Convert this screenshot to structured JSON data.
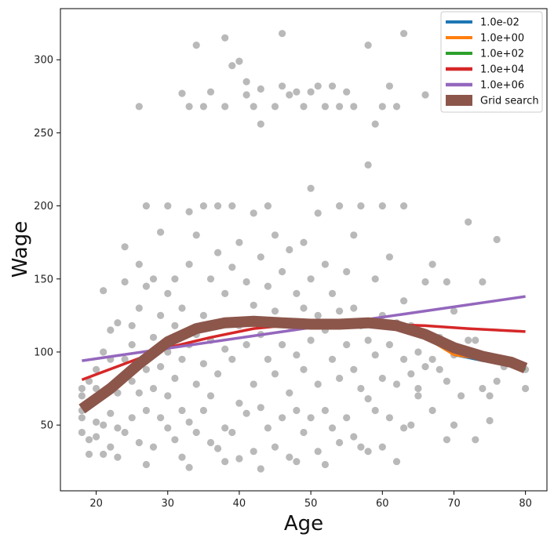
{
  "chart_data": {
    "type": "scatter",
    "xlabel": "Age",
    "ylabel": "Wage",
    "xlim": [
      15,
      83
    ],
    "ylim": [
      5,
      335
    ],
    "xticks": [
      20,
      30,
      40,
      50,
      60,
      70,
      80
    ],
    "yticks": [
      50,
      100,
      150,
      200,
      250,
      300
    ],
    "grid": false,
    "legend_position": "top-right",
    "scatter_color": "#808080",
    "scatter_points": [
      [
        18,
        60
      ],
      [
        18,
        75
      ],
      [
        18,
        70
      ],
      [
        18,
        55
      ],
      [
        18,
        45
      ],
      [
        19,
        40
      ],
      [
        19,
        30
      ],
      [
        19,
        65
      ],
      [
        19,
        80
      ],
      [
        20,
        52
      ],
      [
        20,
        42
      ],
      [
        20,
        75
      ],
      [
        20,
        88
      ],
      [
        21,
        30
      ],
      [
        21,
        50
      ],
      [
        21,
        100
      ],
      [
        21,
        142
      ],
      [
        22,
        35
      ],
      [
        22,
        58
      ],
      [
        22,
        95
      ],
      [
        22,
        115
      ],
      [
        23,
        28
      ],
      [
        23,
        48
      ],
      [
        23,
        72
      ],
      [
        23,
        120
      ],
      [
        24,
        45
      ],
      [
        24,
        95
      ],
      [
        24,
        148
      ],
      [
        24,
        172
      ],
      [
        25,
        55
      ],
      [
        25,
        80
      ],
      [
        25,
        105
      ],
      [
        25,
        118
      ],
      [
        26,
        38
      ],
      [
        26,
        72
      ],
      [
        26,
        130
      ],
      [
        26,
        160
      ],
      [
        26,
        268
      ],
      [
        27,
        23
      ],
      [
        27,
        60
      ],
      [
        27,
        88
      ],
      [
        27,
        145
      ],
      [
        27,
        200
      ],
      [
        28,
        35
      ],
      [
        28,
        75
      ],
      [
        28,
        110
      ],
      [
        28,
        150
      ],
      [
        29,
        55
      ],
      [
        29,
        90
      ],
      [
        29,
        125
      ],
      [
        29,
        182
      ],
      [
        30,
        48
      ],
      [
        30,
        70
      ],
      [
        30,
        100
      ],
      [
        30,
        140
      ],
      [
        30,
        200
      ],
      [
        31,
        40
      ],
      [
        31,
        82
      ],
      [
        31,
        118
      ],
      [
        31,
        150
      ],
      [
        32,
        28
      ],
      [
        32,
        60
      ],
      [
        32,
        95
      ],
      [
        32,
        130
      ],
      [
        32,
        277
      ],
      [
        33,
        21
      ],
      [
        33,
        52
      ],
      [
        33,
        105
      ],
      [
        33,
        160
      ],
      [
        33,
        196
      ],
      [
        33,
        268
      ],
      [
        34,
        45
      ],
      [
        34,
        78
      ],
      [
        34,
        112
      ],
      [
        34,
        180
      ],
      [
        34,
        310
      ],
      [
        35,
        60
      ],
      [
        35,
        92
      ],
      [
        35,
        125
      ],
      [
        35,
        200
      ],
      [
        35,
        268
      ],
      [
        36,
        38
      ],
      [
        36,
        70
      ],
      [
        36,
        108
      ],
      [
        36,
        150
      ],
      [
        36,
        278
      ],
      [
        37,
        34
      ],
      [
        37,
        85
      ],
      [
        37,
        120
      ],
      [
        37,
        168
      ],
      [
        37,
        200
      ],
      [
        38,
        25
      ],
      [
        38,
        48
      ],
      [
        38,
        102
      ],
      [
        38,
        140
      ],
      [
        38,
        268
      ],
      [
        38,
        315
      ],
      [
        39,
        45
      ],
      [
        39,
        95
      ],
      [
        39,
        158
      ],
      [
        39,
        200
      ],
      [
        39,
        296
      ],
      [
        40,
        27
      ],
      [
        40,
        65
      ],
      [
        40,
        118
      ],
      [
        40,
        175
      ],
      [
        40,
        299
      ],
      [
        41,
        58
      ],
      [
        41,
        105
      ],
      [
        41,
        148
      ],
      [
        41,
        276
      ],
      [
        41,
        285
      ],
      [
        42,
        32
      ],
      [
        42,
        78
      ],
      [
        42,
        132
      ],
      [
        42,
        195
      ],
      [
        42,
        268
      ],
      [
        43,
        20
      ],
      [
        43,
        62
      ],
      [
        43,
        112
      ],
      [
        43,
        165
      ],
      [
        43,
        256
      ],
      [
        43,
        280
      ],
      [
        44,
        48
      ],
      [
        44,
        95
      ],
      [
        44,
        145
      ],
      [
        44,
        200
      ],
      [
        45,
        35
      ],
      [
        45,
        85
      ],
      [
        45,
        128
      ],
      [
        45,
        180
      ],
      [
        45,
        268
      ],
      [
        46,
        55
      ],
      [
        46,
        105
      ],
      [
        46,
        155
      ],
      [
        46,
        282
      ],
      [
        46,
        318
      ],
      [
        47,
        28
      ],
      [
        47,
        72
      ],
      [
        47,
        118
      ],
      [
        47,
        170
      ],
      [
        47,
        276
      ],
      [
        48,
        25
      ],
      [
        48,
        60
      ],
      [
        48,
        98
      ],
      [
        48,
        140
      ],
      [
        48,
        278
      ],
      [
        49,
        45
      ],
      [
        49,
        88
      ],
      [
        49,
        130
      ],
      [
        49,
        175
      ],
      [
        49,
        268
      ],
      [
        50,
        212
      ],
      [
        50,
        55
      ],
      [
        50,
        108
      ],
      [
        50,
        150
      ],
      [
        50,
        278
      ],
      [
        51,
        32
      ],
      [
        51,
        78
      ],
      [
        51,
        125
      ],
      [
        51,
        195
      ],
      [
        51,
        282
      ],
      [
        52,
        23
      ],
      [
        52,
        60
      ],
      [
        52,
        115
      ],
      [
        52,
        160
      ],
      [
        52,
        268
      ],
      [
        53,
        48
      ],
      [
        53,
        95
      ],
      [
        53,
        140
      ],
      [
        53,
        282
      ],
      [
        54,
        38
      ],
      [
        54,
        82
      ],
      [
        54,
        128
      ],
      [
        54,
        200
      ],
      [
        54,
        268
      ],
      [
        55,
        55
      ],
      [
        55,
        105
      ],
      [
        55,
        155
      ],
      [
        55,
        278
      ],
      [
        56,
        42
      ],
      [
        56,
        88
      ],
      [
        56,
        130
      ],
      [
        56,
        180
      ],
      [
        56,
        268
      ],
      [
        57,
        35
      ],
      [
        57,
        75
      ],
      [
        57,
        118
      ],
      [
        57,
        200
      ],
      [
        58,
        32
      ],
      [
        58,
        68
      ],
      [
        58,
        108
      ],
      [
        58,
        228
      ],
      [
        58,
        310
      ],
      [
        59,
        60
      ],
      [
        59,
        98
      ],
      [
        59,
        150
      ],
      [
        59,
        256
      ],
      [
        60,
        35
      ],
      [
        60,
        82
      ],
      [
        60,
        125
      ],
      [
        60,
        200
      ],
      [
        60,
        268
      ],
      [
        61,
        55
      ],
      [
        61,
        105
      ],
      [
        61,
        165
      ],
      [
        61,
        282
      ],
      [
        62,
        25
      ],
      [
        62,
        78
      ],
      [
        62,
        120
      ],
      [
        62,
        268
      ],
      [
        63,
        48
      ],
      [
        63,
        95
      ],
      [
        63,
        135
      ],
      [
        63,
        200
      ],
      [
        63,
        318
      ],
      [
        64,
        50
      ],
      [
        64,
        85
      ],
      [
        64,
        118
      ],
      [
        65,
        70
      ],
      [
        65,
        100
      ],
      [
        65,
        75
      ],
      [
        66,
        90
      ],
      [
        66,
        148
      ],
      [
        66,
        276
      ],
      [
        67,
        60
      ],
      [
        67,
        95
      ],
      [
        67,
        160
      ],
      [
        68,
        88
      ],
      [
        68,
        110
      ],
      [
        69,
        40
      ],
      [
        69,
        80
      ],
      [
        69,
        148
      ],
      [
        70,
        50
      ],
      [
        70,
        98
      ],
      [
        70,
        128
      ],
      [
        71,
        70
      ],
      [
        72,
        108
      ],
      [
        72,
        189
      ],
      [
        73,
        40
      ],
      [
        73,
        108
      ],
      [
        74,
        75
      ],
      [
        74,
        148
      ],
      [
        75,
        70
      ],
      [
        75,
        53
      ],
      [
        76,
        80
      ],
      [
        76,
        177
      ],
      [
        77,
        90
      ],
      [
        80,
        75
      ],
      [
        80,
        88
      ]
    ],
    "series": [
      {
        "name": "1.0e-02",
        "color": "#1f77b4",
        "width": 3,
        "x": [
          18,
          22,
          26,
          30,
          34,
          38,
          42,
          46,
          50,
          54,
          58,
          62,
          66,
          70,
          74,
          78,
          80
        ],
        "y": [
          62,
          75,
          92,
          107,
          116,
          120,
          121,
          120,
          119,
          119,
          120,
          119,
          112,
          98,
          94,
          93,
          90
        ]
      },
      {
        "name": "1.0e+00",
        "color": "#ff7f0e",
        "width": 3,
        "x": [
          18,
          22,
          26,
          30,
          34,
          38,
          42,
          46,
          50,
          54,
          58,
          62,
          66,
          70,
          74,
          78,
          80
        ],
        "y": [
          62,
          75,
          92,
          107,
          116,
          120,
          121,
          120,
          119,
          119,
          121,
          117,
          110,
          98,
          95,
          92,
          90
        ]
      },
      {
        "name": "1.0e+02",
        "color": "#2ca02c",
        "width": 3,
        "x": [
          18,
          22,
          26,
          30,
          34,
          38,
          42,
          46,
          50,
          54,
          58,
          62,
          66,
          70,
          74,
          78,
          80
        ],
        "y": [
          62,
          75,
          92,
          106,
          115,
          119,
          120,
          120,
          119,
          119,
          119,
          117,
          111,
          102,
          96,
          92,
          88
        ]
      },
      {
        "name": "1.0e+04",
        "color": "#d62728",
        "width": 3.5,
        "x": [
          18,
          24,
          30,
          36,
          42,
          48,
          54,
          60,
          66,
          72,
          80
        ],
        "y": [
          81,
          92,
          103,
          110,
          116,
          119,
          120,
          119,
          118,
          116,
          114
        ]
      },
      {
        "name": "1.0e+06",
        "color": "#9467bd",
        "width": 3.5,
        "x": [
          18,
          80
        ],
        "y": [
          94,
          138
        ]
      },
      {
        "name": "Grid search",
        "color": "#8c564b",
        "width": 14,
        "x": [
          18,
          22,
          26,
          30,
          34,
          38,
          42,
          46,
          50,
          54,
          58,
          62,
          66,
          70,
          74,
          78,
          80
        ],
        "y": [
          61,
          75,
          92,
          107,
          116,
          120,
          121,
          120,
          119,
          119,
          120,
          118,
          112,
          103,
          97,
          93,
          89
        ]
      }
    ]
  }
}
